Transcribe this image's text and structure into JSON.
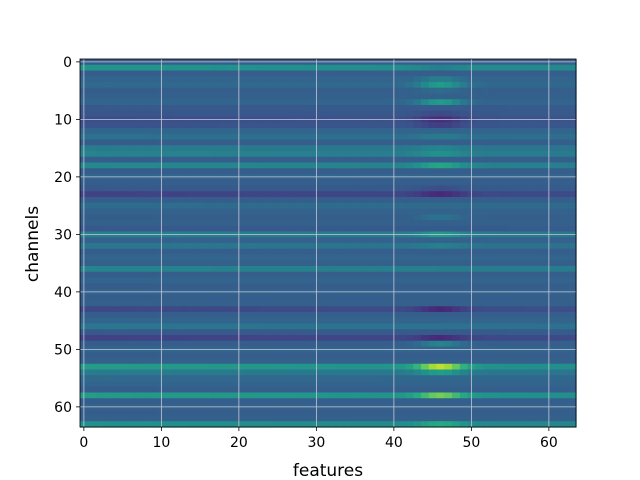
{
  "chart_data": {
    "type": "heatmap",
    "colormap": "viridis",
    "xlabel": "features",
    "ylabel": "channels",
    "xlim": [
      -0.5,
      63.5
    ],
    "ylim": [
      63.5,
      -0.5
    ],
    "x_ticks": [
      0,
      10,
      20,
      30,
      40,
      50,
      60
    ],
    "y_ticks": [
      0,
      10,
      20,
      30,
      40,
      50,
      60
    ],
    "grid": true,
    "n_rows": 64,
    "n_cols": 64,
    "value_range": [
      0,
      1
    ],
    "baseline": 0.32,
    "rows": [
      {
        "channel": 0,
        "level": 0.3,
        "bump": 0.0
      },
      {
        "channel": 1,
        "level": 0.52,
        "bump": -0.05
      },
      {
        "channel": 2,
        "level": 0.3,
        "bump": 0.0
      },
      {
        "channel": 3,
        "level": 0.33,
        "bump": 0.1
      },
      {
        "channel": 4,
        "level": 0.35,
        "bump": 0.2
      },
      {
        "channel": 5,
        "level": 0.3,
        "bump": 0.05
      },
      {
        "channel": 6,
        "level": 0.31,
        "bump": 0.0
      },
      {
        "channel": 7,
        "level": 0.33,
        "bump": 0.22
      },
      {
        "channel": 8,
        "level": 0.28,
        "bump": 0.0
      },
      {
        "channel": 9,
        "level": 0.27,
        "bump": -0.05
      },
      {
        "channel": 10,
        "level": 0.24,
        "bump": -0.12
      },
      {
        "channel": 11,
        "level": 0.26,
        "bump": -0.08
      },
      {
        "channel": 12,
        "level": 0.33,
        "bump": 0.0
      },
      {
        "channel": 13,
        "level": 0.38,
        "bump": 0.05
      },
      {
        "channel": 14,
        "level": 0.3,
        "bump": 0.0
      },
      {
        "channel": 15,
        "level": 0.42,
        "bump": 0.05
      },
      {
        "channel": 16,
        "level": 0.45,
        "bump": 0.08
      },
      {
        "channel": 17,
        "level": 0.3,
        "bump": 0.0
      },
      {
        "channel": 18,
        "level": 0.47,
        "bump": 0.15
      },
      {
        "channel": 19,
        "level": 0.3,
        "bump": 0.0
      },
      {
        "channel": 20,
        "level": 0.33,
        "bump": 0.0
      },
      {
        "channel": 21,
        "level": 0.3,
        "bump": 0.0
      },
      {
        "channel": 22,
        "level": 0.28,
        "bump": -0.05
      },
      {
        "channel": 23,
        "level": 0.2,
        "bump": -0.1
      },
      {
        "channel": 24,
        "level": 0.3,
        "bump": 0.0
      },
      {
        "channel": 25,
        "level": 0.36,
        "bump": 0.0
      },
      {
        "channel": 26,
        "level": 0.32,
        "bump": 0.0
      },
      {
        "channel": 27,
        "level": 0.3,
        "bump": 0.08
      },
      {
        "channel": 28,
        "level": 0.31,
        "bump": 0.0
      },
      {
        "channel": 29,
        "level": 0.28,
        "bump": 0.0
      },
      {
        "channel": 30,
        "level": 0.44,
        "bump": 0.12
      },
      {
        "channel": 31,
        "level": 0.32,
        "bump": 0.0
      },
      {
        "channel": 32,
        "level": 0.4,
        "bump": 0.05
      },
      {
        "channel": 33,
        "level": 0.3,
        "bump": 0.0
      },
      {
        "channel": 34,
        "level": 0.33,
        "bump": 0.0
      },
      {
        "channel": 35,
        "level": 0.31,
        "bump": 0.0
      },
      {
        "channel": 36,
        "level": 0.45,
        "bump": 0.0
      },
      {
        "channel": 37,
        "level": 0.3,
        "bump": 0.0
      },
      {
        "channel": 38,
        "level": 0.33,
        "bump": 0.0
      },
      {
        "channel": 39,
        "level": 0.3,
        "bump": 0.0
      },
      {
        "channel": 40,
        "level": 0.32,
        "bump": 0.0
      },
      {
        "channel": 41,
        "level": 0.3,
        "bump": 0.0
      },
      {
        "channel": 42,
        "level": 0.31,
        "bump": 0.0
      },
      {
        "channel": 43,
        "level": 0.22,
        "bump": -0.12
      },
      {
        "channel": 44,
        "level": 0.3,
        "bump": 0.0
      },
      {
        "channel": 45,
        "level": 0.33,
        "bump": 0.0
      },
      {
        "channel": 46,
        "level": 0.4,
        "bump": 0.0
      },
      {
        "channel": 47,
        "level": 0.28,
        "bump": 0.0
      },
      {
        "channel": 48,
        "level": 0.2,
        "bump": -0.1
      },
      {
        "channel": 49,
        "level": 0.3,
        "bump": 0.15
      },
      {
        "channel": 50,
        "level": 0.33,
        "bump": 0.0
      },
      {
        "channel": 51,
        "level": 0.3,
        "bump": 0.0
      },
      {
        "channel": 52,
        "level": 0.31,
        "bump": 0.0
      },
      {
        "channel": 53,
        "level": 0.55,
        "bump": 0.4
      },
      {
        "channel": 54,
        "level": 0.42,
        "bump": 0.15
      },
      {
        "channel": 55,
        "level": 0.35,
        "bump": 0.0
      },
      {
        "channel": 56,
        "level": 0.33,
        "bump": 0.0
      },
      {
        "channel": 57,
        "level": 0.3,
        "bump": 0.0
      },
      {
        "channel": 58,
        "level": 0.55,
        "bump": 0.28
      },
      {
        "channel": 59,
        "level": 0.3,
        "bump": 0.0
      },
      {
        "channel": 60,
        "level": 0.32,
        "bump": 0.0
      },
      {
        "channel": 61,
        "level": 0.3,
        "bump": 0.0
      },
      {
        "channel": 62,
        "level": 0.31,
        "bump": 0.0
      },
      {
        "channel": 63,
        "level": 0.5,
        "bump": 0.15
      }
    ],
    "column_bump_center": 46,
    "column_bump_width": 3
  }
}
